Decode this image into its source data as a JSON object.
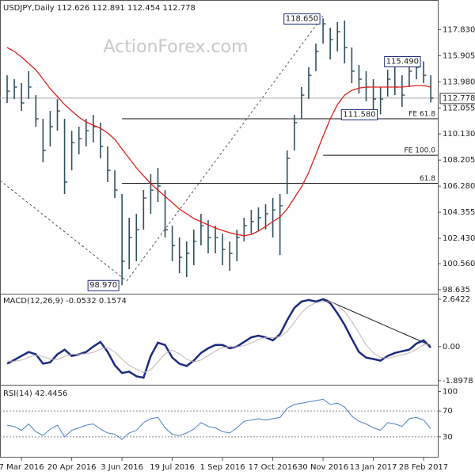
{
  "chart_data": [
    {
      "type": "ohlc",
      "title": "USDJPY,Daily  112.626 112.891 112.454 112.778",
      "watermark": "ActionForex.com",
      "categories": [
        null,
        null,
        "7 Mar 2016",
        null,
        null,
        null,
        null,
        null,
        null,
        "20 Apr 2016",
        null,
        null,
        null,
        null,
        null,
        null,
        "3 Jun 2016",
        null,
        null,
        null,
        null,
        null,
        null,
        "19 Jul 2016",
        null,
        null,
        null,
        null,
        null,
        null,
        "1 Sep 2016",
        null,
        null,
        null,
        null,
        null,
        null,
        "17 Oct 2016",
        null,
        null,
        null,
        null,
        null,
        null,
        "30 Nov 2016",
        null,
        null,
        null,
        null,
        null,
        null,
        "13 Jan 2017",
        null,
        null,
        null,
        null,
        null,
        null,
        "28 Feb 2017",
        null
      ],
      "high": [
        114.46,
        114.17,
        113.88,
        114.76,
        113.0,
        111.25,
        111.83,
        112.71,
        111.25,
        110.37,
        110.67,
        111.25,
        111.54,
        110.96,
        109.21,
        107.45,
        105.7,
        103.95,
        104.24,
        105.99,
        107.16,
        107.63,
        105.99,
        103.36,
        102.49,
        102.2,
        103.07,
        104.24,
        103.77,
        103.36,
        102.78,
        102.2,
        103.07,
        103.95,
        104.53,
        104.71,
        104.94,
        105.41,
        105.7,
        108.91,
        111.54,
        113.59,
        115.05,
        116.8,
        118.65,
        117.97,
        118.38,
        118.5,
        116.51,
        115.22,
        114.76,
        114.17,
        113.59,
        114.87,
        115.05,
        114.46,
        115.34,
        115.45,
        115.49,
        114.46
      ],
      "low": [
        112.42,
        112.71,
        111.83,
        112.71,
        110.67,
        108.04,
        109.21,
        110.37,
        105.7,
        107.45,
        108.62,
        109.21,
        109.5,
        108.33,
        106.58,
        105.41,
        98.97,
        100.15,
        100.74,
        103.07,
        104.24,
        105.12,
        102.49,
        100.74,
        99.86,
        99.57,
        100.44,
        101.9,
        101.32,
        101.32,
        100.44,
        100.04,
        100.74,
        102.2,
        102.78,
        102.96,
        103.07,
        102.49,
        101.2,
        105.7,
        108.91,
        111.25,
        112.71,
        114.76,
        116.8,
        115.63,
        116.22,
        115.34,
        113.88,
        113.12,
        112.54,
        111.95,
        111.58,
        112.89,
        113.0,
        112.13,
        113.59,
        114.17,
        113.88,
        112.454
      ],
      "close": [
        113.29,
        113.59,
        112.42,
        113.59,
        111.25,
        108.91,
        110.67,
        111.83,
        106.58,
        109.5,
        109.79,
        110.37,
        110.67,
        109.21,
        107.45,
        105.99,
        100.74,
        102.49,
        103.07,
        105.41,
        105.99,
        106.29,
        103.07,
        101.9,
        101.03,
        101.32,
        102.2,
        103.36,
        102.49,
        102.49,
        101.61,
        101.32,
        102.49,
        103.36,
        103.66,
        103.95,
        104.24,
        104.53,
        104.83,
        108.33,
        110.96,
        113.0,
        114.46,
        116.22,
        118.26,
        117.09,
        117.68,
        116.51,
        114.76,
        114.17,
        113.59,
        112.71,
        112.71,
        114.17,
        113.59,
        113.0,
        114.76,
        115.05,
        114.46,
        112.778
      ],
      "color": "#2f4f5f",
      "ma": {
        "color": "#e0201b",
        "values": [
          116.51,
          116.22,
          115.81,
          115.34,
          114.87,
          114.17,
          113.47,
          112.89,
          112.3,
          111.83,
          111.37,
          111.02,
          110.78,
          110.55,
          110.2,
          109.73,
          109.03,
          108.33,
          107.63,
          107.04,
          106.46,
          105.99,
          105.53,
          105.06,
          104.59,
          104.24,
          103.89,
          103.66,
          103.42,
          103.19,
          103.01,
          102.84,
          102.72,
          102.61,
          102.72,
          102.96,
          103.31,
          103.66,
          104.01,
          104.59,
          105.41,
          106.23,
          107.28,
          108.62,
          109.97,
          111.25,
          112.3,
          113.0,
          113.35,
          113.52,
          113.59,
          113.59,
          113.59,
          113.59,
          113.59,
          113.59,
          113.65,
          113.7,
          113.7,
          113.59
        ]
      },
      "last": {
        "value": 112.778,
        "label": "112.778"
      },
      "annotations": [
        {
          "label": "118.650",
          "index": 44,
          "value": 118.65
        },
        {
          "label": "98.970",
          "index": 16,
          "value": 98.97
        },
        {
          "label": "115.490",
          "index": 58,
          "value": 115.49
        },
        {
          "label": "111.580",
          "index": 52,
          "value": 111.58
        }
      ],
      "levels": [
        {
          "label": "FE 61.8",
          "value": 111.25,
          "start": 16
        },
        {
          "label": "FE 100.0",
          "value": 108.56,
          "start": 44
        },
        {
          "label": "61.8",
          "value": 106.49,
          "start": 16
        }
      ],
      "ylim": [
        98.4,
        119.9
      ],
      "yticks": [
        {
          "value": 98.635,
          "label": "98.635"
        },
        {
          "value": 100.56,
          "label": "100.560"
        },
        {
          "value": 102.43,
          "label": "102.430"
        },
        {
          "value": 104.355,
          "label": "104.355"
        },
        {
          "value": 106.28,
          "label": "106.280"
        },
        {
          "value": 108.205,
          "label": "108.205"
        },
        {
          "value": 110.13,
          "label": "110.130"
        },
        {
          "value": 112.055,
          "label": "112.055"
        },
        {
          "value": 113.98,
          "label": "113.980"
        },
        {
          "value": 115.905,
          "label": "115.905"
        },
        {
          "value": 117.83,
          "label": "117.830"
        }
      ]
    },
    {
      "type": "line",
      "title": "MACD(12,26,9) -0.0532 0.1574",
      "series": [
        {
          "color": "#1d2a80",
          "width": 2.5,
          "values": [
            -0.95,
            -0.74,
            -0.52,
            -0.3,
            -0.43,
            -0.95,
            -0.87,
            -0.43,
            -0.17,
            -0.52,
            -0.43,
            -0.3,
            0.0,
            0.26,
            -0.3,
            -1.04,
            -1.47,
            -1.39,
            -1.65,
            -1.73,
            -0.52,
            0.22,
            0.09,
            -0.61,
            -0.95,
            -1.08,
            -0.78,
            -0.35,
            -0.09,
            0.09,
            0.09,
            -0.09,
            0.0,
            0.26,
            0.52,
            0.61,
            0.52,
            0.35,
            0.69,
            1.47,
            2.16,
            2.51,
            2.6,
            2.51,
            2.64,
            2.42,
            1.86,
            1.21,
            0.43,
            -0.3,
            -0.61,
            -0.69,
            -0.78,
            -0.52,
            -0.35,
            -0.26,
            -0.17,
            0.17,
            0.35,
            -0.0532
          ]
        },
        {
          "color": "#c4b4b4",
          "width": 1,
          "values": [
            -0.8,
            -0.82,
            -0.75,
            -0.6,
            -0.48,
            -0.55,
            -0.7,
            -0.72,
            -0.55,
            -0.42,
            -0.42,
            -0.4,
            -0.32,
            -0.15,
            -0.05,
            -0.3,
            -0.7,
            -1.05,
            -1.25,
            -1.45,
            -1.3,
            -0.85,
            -0.4,
            -0.2,
            -0.4,
            -0.7,
            -0.85,
            -0.75,
            -0.5,
            -0.25,
            -0.05,
            0.0,
            -0.02,
            0.05,
            0.2,
            0.4,
            0.52,
            0.5,
            0.55,
            0.85,
            1.35,
            1.9,
            2.25,
            2.45,
            2.5,
            2.5,
            2.3,
            1.95,
            1.4,
            0.75,
            0.1,
            -0.35,
            -0.6,
            -0.65,
            -0.55,
            -0.45,
            -0.35,
            -0.15,
            0.1,
            0.1574
          ]
        }
      ],
      "ylim": [
        -2.08,
        2.86
      ],
      "yticks": [
        2.6422,
        {
          "value": 0,
          "label": "0.00"
        },
        -1.8978
      ]
    },
    {
      "type": "line",
      "title": "RSI(14) 42.4456",
      "series": [
        {
          "color": "#4d7fc9",
          "width": 1,
          "values": [
            48,
            46,
            40,
            50,
            38,
            32,
            42,
            48,
            30,
            40,
            44,
            48,
            50,
            42,
            36,
            34,
            26,
            36,
            40,
            52,
            58,
            60,
            44,
            34,
            32,
            36,
            42,
            52,
            46,
            44,
            38,
            36,
            44,
            54,
            56,
            58,
            56,
            58,
            60,
            74,
            80,
            82,
            84,
            86,
            88,
            80,
            82,
            76,
            62,
            54,
            50,
            44,
            40,
            52,
            50,
            46,
            58,
            60,
            56,
            42.4456
          ]
        }
      ],
      "levels": [
        70,
        30
      ],
      "ylim": [
        -2,
        108
      ],
      "yticks": [
        100,
        70,
        30
      ]
    }
  ]
}
